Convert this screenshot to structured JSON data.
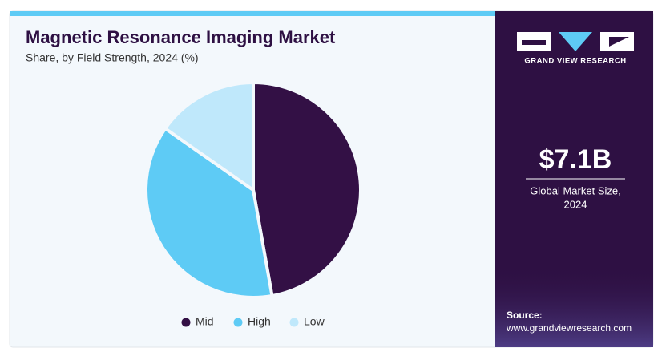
{
  "chart_data": {
    "type": "pie",
    "title": "Magnetic Resonance Imaging Market",
    "subtitle": "Share, by Field Strength, 2024 (%)",
    "categories": [
      "Mid",
      "High",
      "Low"
    ],
    "values": [
      47.2,
      37.5,
      15.3
    ],
    "colors": [
      "#331045",
      "#5ecbf5",
      "#bfe8fb"
    ],
    "legend": "bottom"
  },
  "sidebar": {
    "brand": "GRAND VIEW RESEARCH",
    "market_size": "$7.1B",
    "market_label_1": "Global Market Size,",
    "market_label_2": "2024",
    "source_label": "Source:",
    "source_url": "www.grandviewresearch.com"
  }
}
